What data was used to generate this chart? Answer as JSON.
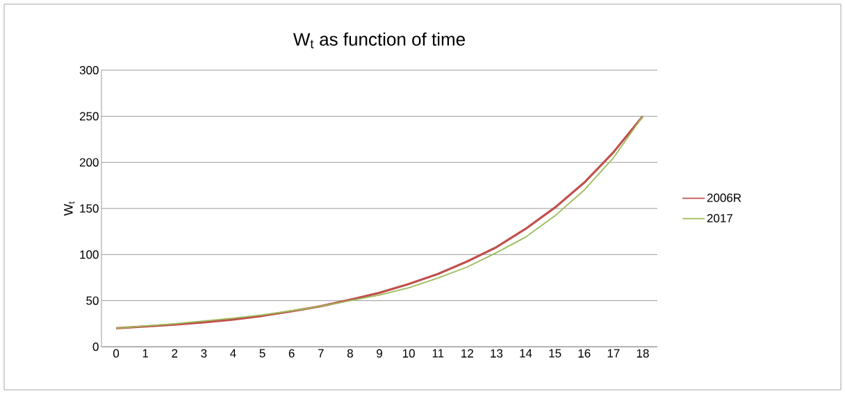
{
  "chart_data": {
    "type": "line",
    "title": "W$_{t}$ as function of time",
    "ylabel": "W$_{t}$",
    "categories": [
      "0",
      "1",
      "2",
      "3",
      "4",
      "5",
      "6",
      "7",
      "8",
      "9",
      "10",
      "11",
      "12",
      "13",
      "14",
      "15",
      "16",
      "17",
      "18"
    ],
    "series": [
      {
        "name": "2006R",
        "color": "#c0504d",
        "values": [
          20,
          22,
          24,
          26.5,
          29.5,
          33.5,
          38.5,
          44,
          51,
          58.5,
          68,
          79,
          92.5,
          108,
          128,
          151,
          178,
          211,
          250
        ]
      },
      {
        "name": "2017",
        "color": "#9bbb59",
        "values": [
          20,
          22.5,
          25,
          28,
          31,
          34.5,
          39,
          44,
          50,
          56,
          64,
          74.5,
          86.5,
          102,
          119,
          142,
          170,
          205,
          250
        ]
      }
    ],
    "ylim": [
      0,
      300
    ],
    "yticks": [
      0,
      50,
      100,
      150,
      200,
      250,
      300
    ],
    "grid": "y",
    "legend": "right",
    "marker": "none",
    "line_style": "solid"
  }
}
